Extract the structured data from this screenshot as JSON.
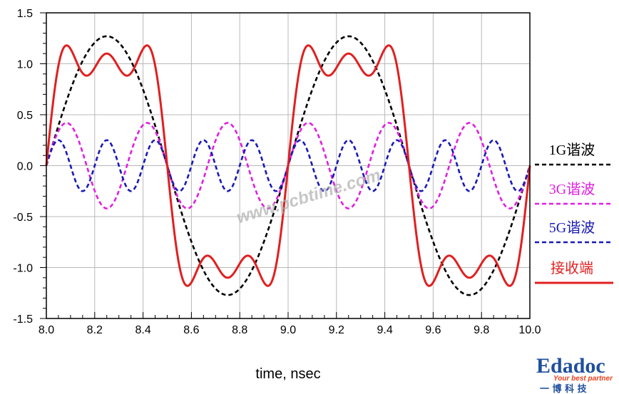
{
  "chart_data": {
    "type": "line",
    "title": "",
    "xlabel": "time, nsec",
    "ylabel": "",
    "xlim": [
      8.0,
      10.0
    ],
    "ylim": [
      -1.5,
      1.5
    ],
    "x_ticks": [
      8.0,
      8.2,
      8.4,
      8.6,
      8.8,
      9.0,
      9.2,
      9.4,
      9.6,
      9.8,
      10.0
    ],
    "x_tick_labels": [
      "8.0",
      "8.2",
      "8.4",
      "8.6",
      "8.8",
      "9.0",
      "9.2",
      "9.4",
      "9.6",
      "9.8",
      "10.0"
    ],
    "y_ticks": [
      1.5,
      1.0,
      0.5,
      0.0,
      -0.5,
      -1.0,
      -1.5
    ],
    "y_tick_labels": [
      "1.5",
      "1.0",
      "0.5",
      "0.0",
      "-0.5",
      "-1.0",
      "-1.5"
    ],
    "grid": true,
    "legend_position": "right",
    "series": [
      {
        "name": "1G谐波",
        "color": "#000000",
        "dash": "dashed",
        "amplitude": 1.27,
        "frequency_ghz": 1
      },
      {
        "name": "3G谐波",
        "color": "#e020e0",
        "dash": "dashed",
        "amplitude": 0.42,
        "frequency_ghz": 3
      },
      {
        "name": "5G谐波",
        "color": "#1a1ab8",
        "dash": "dashed",
        "amplitude": 0.25,
        "frequency_ghz": 5
      },
      {
        "name": "接收端",
        "color": "#e02020",
        "dash": "solid",
        "components": "1G谐波 + 3G谐波 + 5G谐波"
      }
    ]
  },
  "watermark": "www.pcbtime.com",
  "logo": {
    "name": "Edadoc",
    "tagline": "Your best partner",
    "chinese": "一 博 科 技"
  }
}
